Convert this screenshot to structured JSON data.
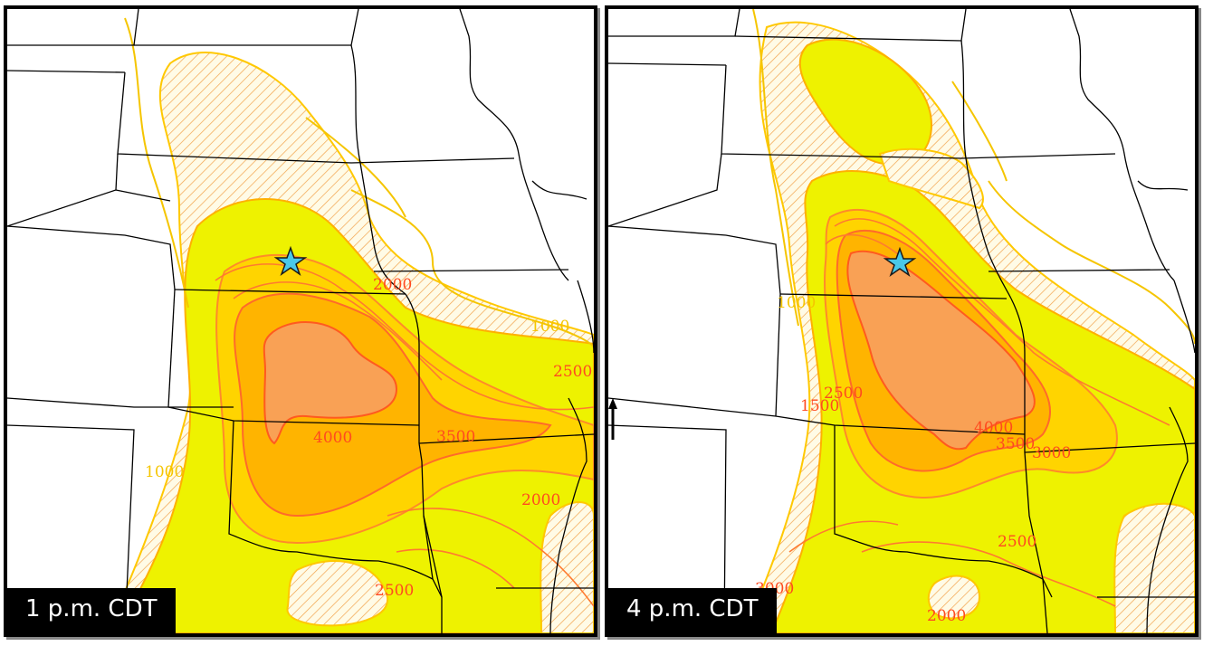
{
  "panels": [
    {
      "time_label": "1 p.m. CDT",
      "contour_labels": [
        "2000",
        "1000",
        "2500",
        "4000",
        "3500",
        "1000",
        "2000",
        "2500"
      ],
      "marker": "star-icon"
    },
    {
      "time_label": "4 p.m. CDT",
      "contour_labels": [
        "1000",
        "2500",
        "1500",
        "4000",
        "3500",
        "3000",
        "2500",
        "3000",
        "2000"
      ],
      "marker": "star-icon"
    }
  ],
  "colors": {
    "light_yellow": "#fff6b0",
    "yellow": "#eef200",
    "gold": "#ffd400",
    "orange": "#ffb400",
    "salmon": "#f9a155",
    "contour_orange": "#ff7a30",
    "contour_yellow": "#f5c500",
    "star": "#49c8ea"
  }
}
